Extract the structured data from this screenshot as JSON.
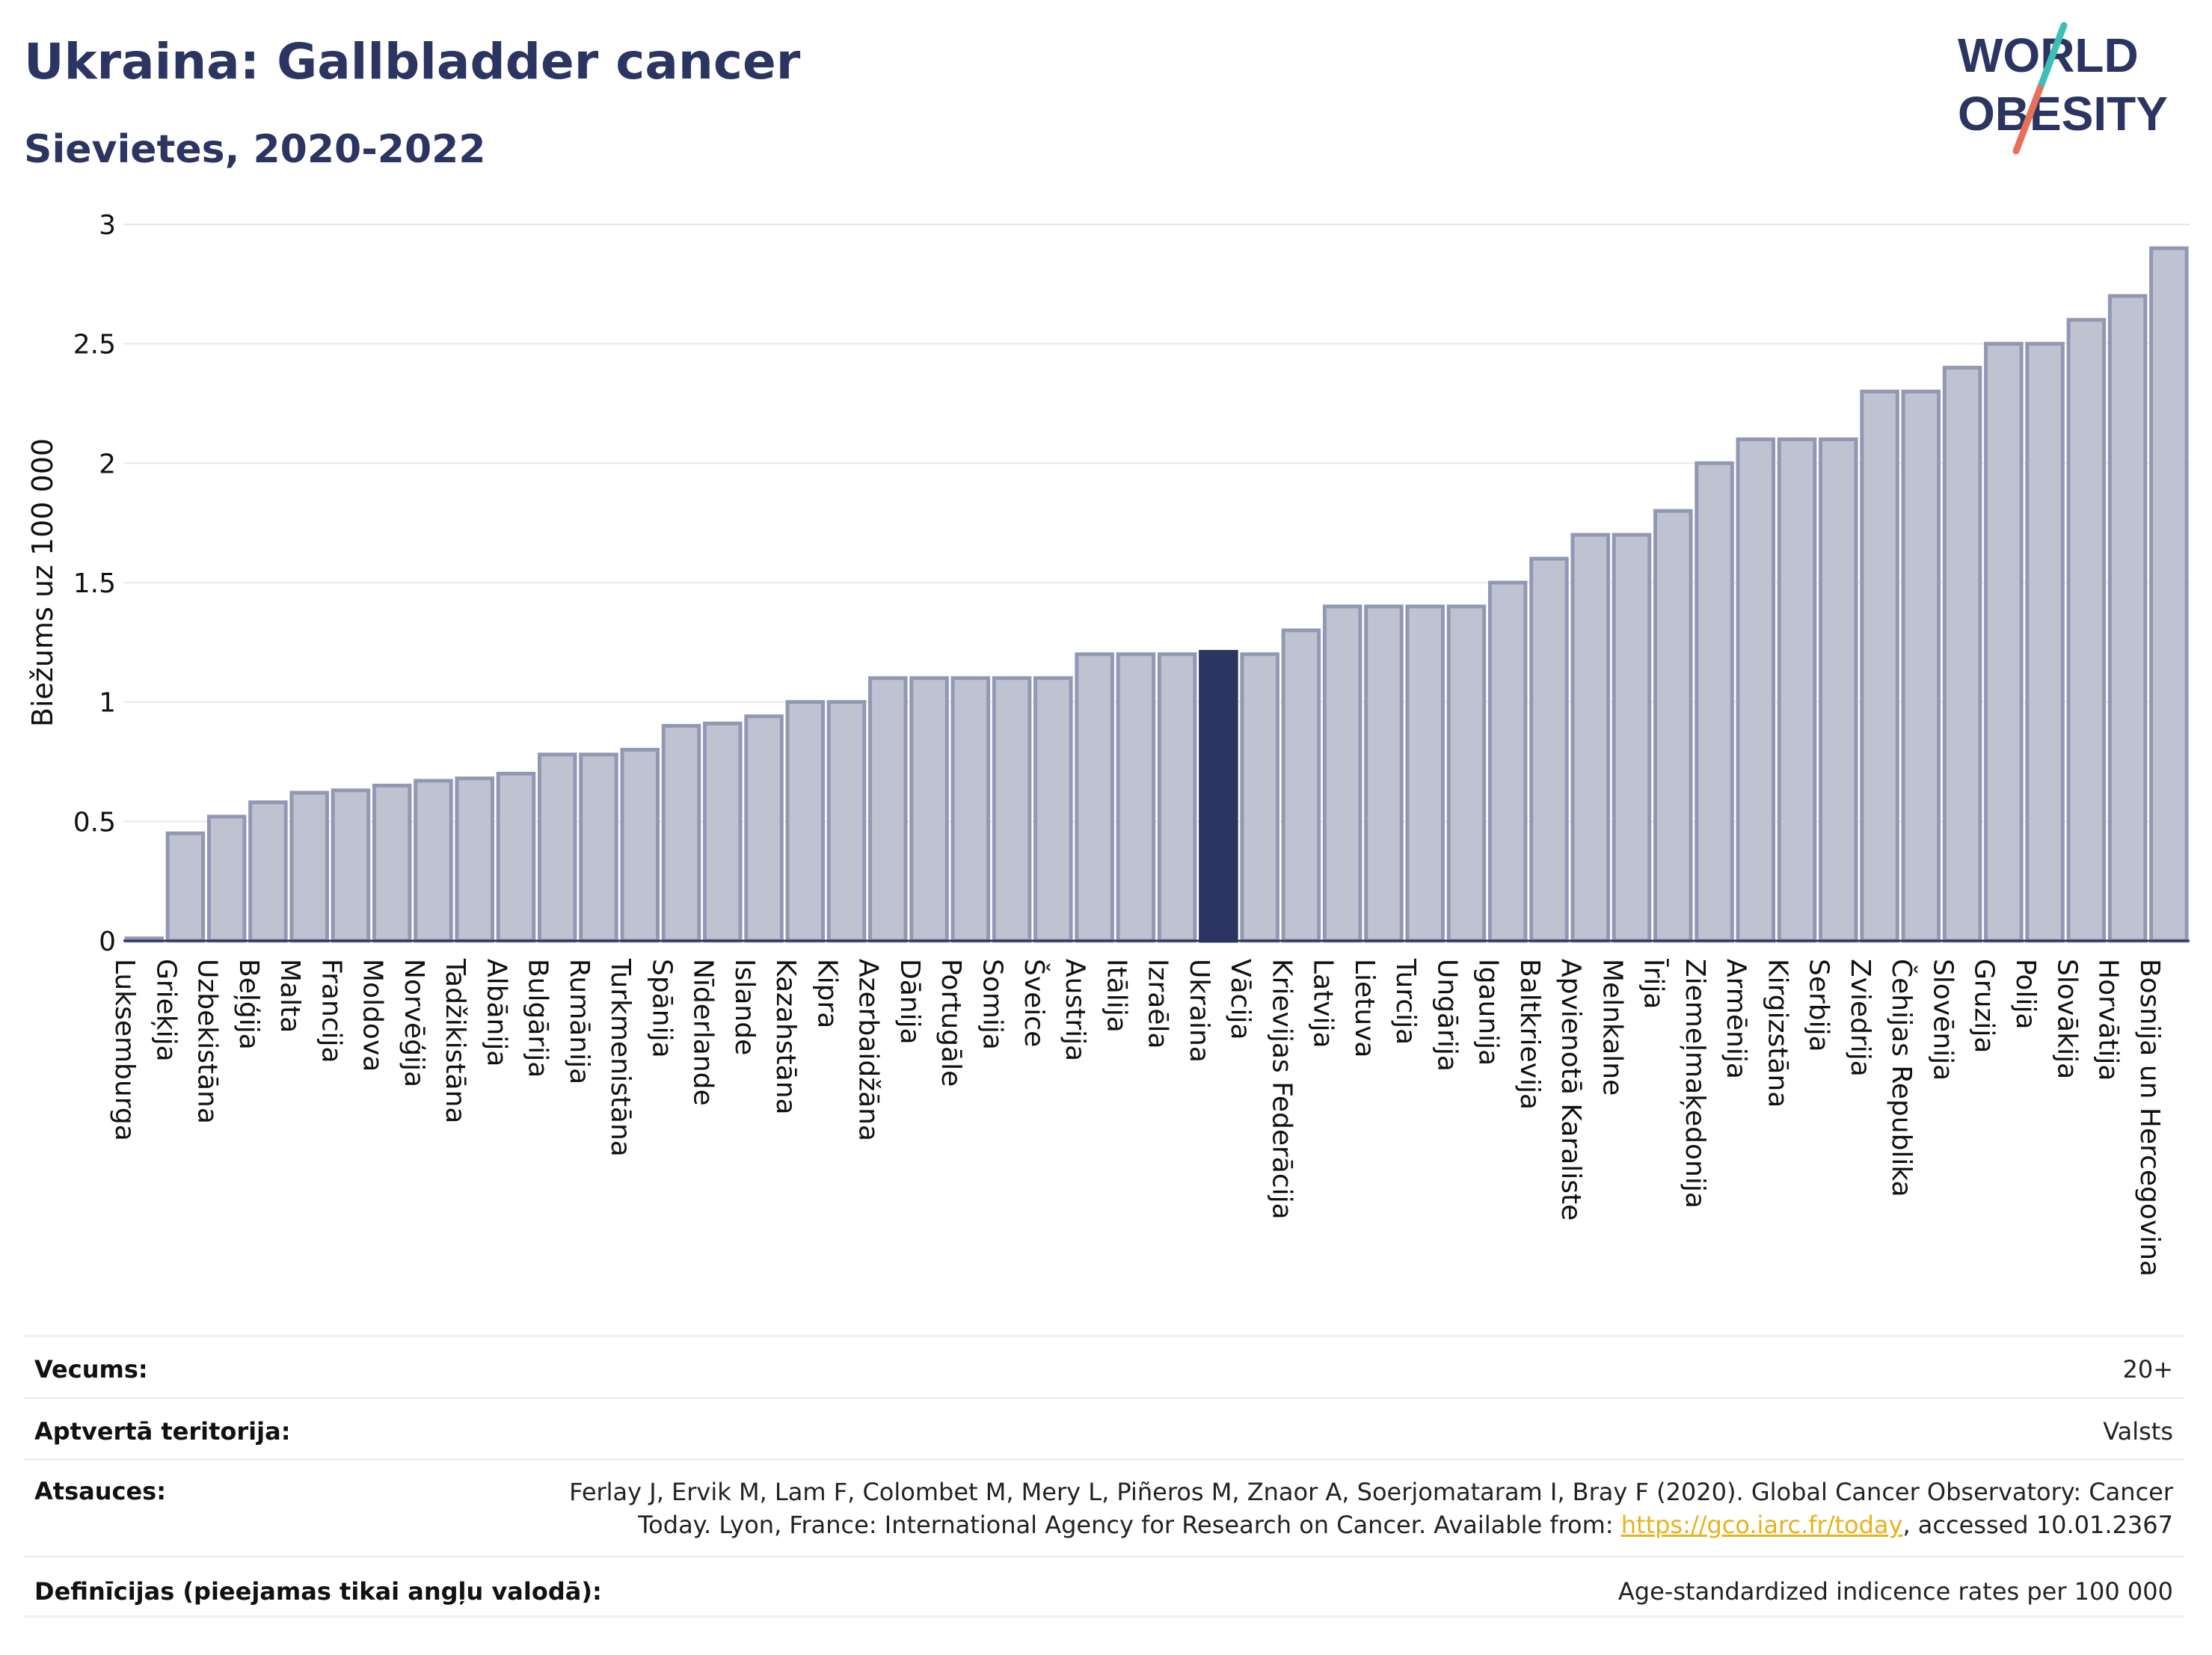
{
  "header": {
    "title": "Ukraina: Gallbladder cancer",
    "subtitle": "Sievietes, 2020-2022"
  },
  "logo": {
    "line1": "WORLD",
    "line2": "OBESITY",
    "colors": {
      "text": "#2c3561",
      "slash_top": "#3dbfb5",
      "slash_bottom": "#e8705a"
    }
  },
  "chart_data": {
    "type": "bar",
    "ylabel": "Biežums uz 100 000",
    "ylim": [
      0,
      3
    ],
    "yticks": [
      0,
      0.5,
      1,
      1.5,
      2,
      2.5,
      3
    ],
    "ytick_labels": [
      "0",
      "0.5",
      "1",
      "1.5",
      "2",
      "2.5",
      "3"
    ],
    "grid": true,
    "highlight": "Ukraina",
    "colors": {
      "bar": "#bfc3d1",
      "bar_edge": "#9298b4",
      "highlight": "#2c3561",
      "grid": "#e6e8ef"
    },
    "categories": [
      "Luksemburga",
      "Grieķija",
      "Uzbekistāna",
      "Beļģija",
      "Malta",
      "Francija",
      "Moldova",
      "Norvēģija",
      "Tadžikistāna",
      "Albānija",
      "Bulgārija",
      "Rumānija",
      "Turkmenistāna",
      "Spānija",
      "Nīderlande",
      "Islande",
      "Kazahstāna",
      "Kipra",
      "Azerbaidžāna",
      "Dānija",
      "Portugāle",
      "Somija",
      "Šveice",
      "Austrija",
      "Itālija",
      "Izraēla",
      "Ukraina",
      "Vācija",
      "Krievijas Federācija",
      "Latvija",
      "Lietuva",
      "Turcija",
      "Ungārija",
      "Igaunija",
      "Baltkrievija",
      "Apvienotā Karaliste",
      "Melnkalne",
      "Īrija",
      "Ziemeļmaķedonija",
      "Armēnija",
      "Kirgizstāna",
      "Serbija",
      "Zviedrija",
      "Čehijas Republika",
      "Slovēnija",
      "Gruzija",
      "Polija",
      "Slovākija",
      "Horvātija",
      "Bosnija un Hercegovina"
    ],
    "values": [
      0.01,
      0.45,
      0.52,
      0.58,
      0.62,
      0.63,
      0.65,
      0.67,
      0.68,
      0.7,
      0.78,
      0.78,
      0.8,
      0.9,
      0.91,
      0.94,
      1.0,
      1.0,
      1.1,
      1.1,
      1.1,
      1.1,
      1.1,
      1.2,
      1.2,
      1.2,
      1.21,
      1.2,
      1.3,
      1.4,
      1.4,
      1.4,
      1.4,
      1.5,
      1.6,
      1.7,
      1.7,
      1.8,
      2.0,
      2.1,
      2.1,
      2.1,
      2.3,
      2.3,
      2.4,
      2.5,
      2.5,
      2.6,
      2.7,
      2.9
    ]
  },
  "meta": {
    "age_label": "Vecums:",
    "age_value": "20+",
    "coverage_label": "Aptvertā teritorija:",
    "coverage_value": "Valsts",
    "refs_label": "Atsauces:",
    "refs_line1": "Ferlay J, Ervik M, Lam F, Colombet M, Mery L, Piñeros M, Znaor A, Soerjomataram I, Bray F (2020). Global Cancer Observatory: Cancer",
    "refs_line2_pre": "Today. Lyon, France: International Agency for Research on Cancer. Available from: ",
    "refs_link": "https://gco.iarc.fr/today",
    "refs_line2_post": ", accessed 10.01.2367",
    "defs_label": "Definīcijas (pieejamas tikai angļu valodā):",
    "defs_value": "Age-standardized indicence rates per 100 000"
  }
}
